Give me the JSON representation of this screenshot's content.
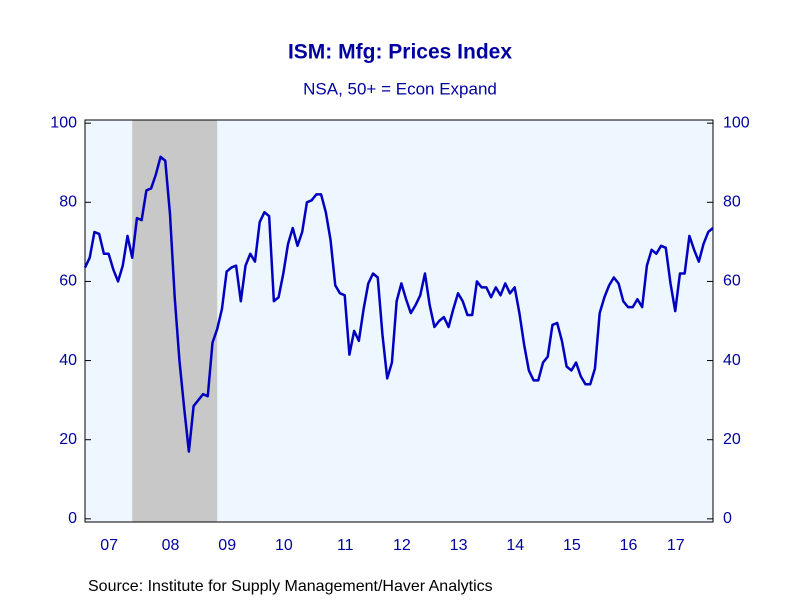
{
  "chart_data": {
    "type": "line",
    "title": "ISM: Mfg: Prices Index",
    "subtitle": "NSA, 50+ = Econ Expand",
    "source": "Source:  Institute for Supply Management/Haver Analytics",
    "categories": [
      null,
      null,
      null,
      "07",
      null,
      null,
      null,
      null,
      null,
      null,
      null,
      null,
      null,
      null,
      null,
      null,
      "08",
      null,
      null,
      null,
      null,
      null,
      null,
      null,
      null,
      null,
      null,
      null,
      "09",
      null,
      null,
      null,
      null,
      null,
      null,
      null,
      null,
      null,
      null,
      null,
      "10",
      null,
      null,
      null,
      null,
      null,
      null,
      null,
      null,
      null,
      null,
      null,
      null,
      "11",
      null,
      null,
      null,
      null,
      null,
      null,
      null,
      null,
      null,
      null,
      null,
      "12",
      null,
      null,
      null,
      null,
      null,
      null,
      null,
      null,
      null,
      null,
      null,
      "13",
      null,
      null,
      null,
      null,
      null,
      null,
      null,
      null,
      null,
      null,
      null,
      "14",
      null,
      null,
      null,
      null,
      null,
      null,
      null,
      null,
      null,
      null,
      null,
      "15",
      null,
      null,
      null,
      null,
      null,
      null,
      null,
      null,
      null,
      null,
      null,
      "16",
      null,
      null,
      null,
      null,
      null,
      null,
      null,
      null,
      null,
      "17",
      null,
      null,
      null,
      null,
      null,
      null,
      null,
      null,
      null,
      null
    ],
    "series": [
      {
        "name": "ISM: Mfg: Prices Index",
        "color": "#0000c0",
        "values": [
          63.5,
          66,
          72.5,
          72,
          67,
          67,
          63,
          60,
          64,
          71.5,
          66,
          76,
          75.5,
          83,
          83.5,
          87,
          91.5,
          90.5,
          77,
          56,
          40,
          28,
          17,
          28.5,
          30,
          31.5,
          31,
          44.5,
          48,
          53,
          62.5,
          63.5,
          64,
          55,
          64,
          67,
          65,
          75,
          77.5,
          76.5,
          55,
          56,
          62,
          69.5,
          73.5,
          69,
          72.5,
          80,
          80.5,
          82,
          82,
          77.5,
          70.5,
          59,
          57,
          56.5,
          41.5,
          47.5,
          45,
          53,
          59.5,
          62,
          61,
          46.5,
          35.5,
          39.5,
          55,
          59.5,
          55.5,
          52,
          54,
          56.5,
          62,
          54,
          48.5,
          50,
          51,
          48.5,
          53,
          57,
          55,
          51.5,
          51.5,
          60,
          58.5,
          58.5,
          56,
          58.5,
          56.5,
          59.5,
          57,
          58.5,
          52,
          44,
          37.5,
          35,
          35,
          39.5,
          41,
          49,
          49.5,
          45,
          38.5,
          37.5,
          39.5,
          36,
          34,
          34,
          38,
          52,
          56,
          59,
          61,
          59.5,
          55,
          53.5,
          53.5,
          55.5,
          53.5,
          64,
          68,
          67,
          69,
          68.5,
          59.5,
          52.5,
          62,
          62,
          71.5,
          68,
          65,
          69.5,
          72.5,
          73.5
        ]
      }
    ],
    "shaded_ranges": [
      [
        10,
        28
      ]
    ],
    "shade_color": "#c8c8c8",
    "background": "#eef6ff",
    "ylim": [
      -0.8,
      100.8
    ],
    "yticks": [
      0,
      20,
      40,
      60,
      80,
      100
    ],
    "y2lim": [
      -0.8,
      100.8
    ],
    "y2ticks": [
      0,
      20,
      40,
      60,
      80,
      100
    ]
  }
}
